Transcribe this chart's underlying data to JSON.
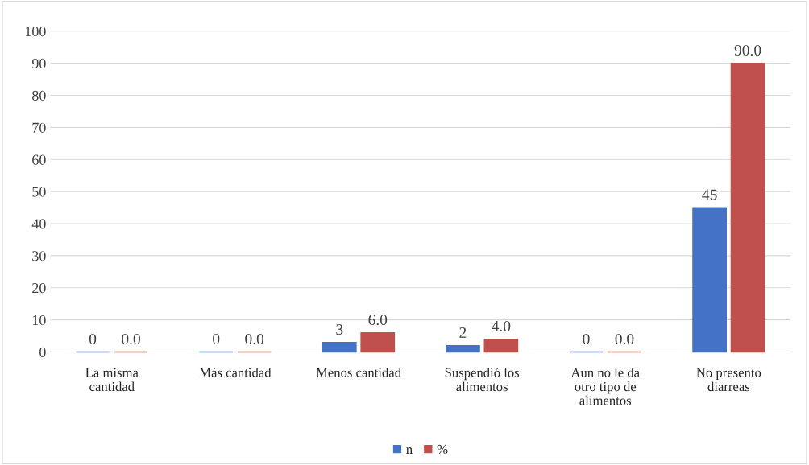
{
  "chart_data": {
    "type": "bar",
    "categories": [
      "La misma\ncantidad",
      "Más cantidad",
      "Menos cantidad",
      "Suspendió los\nalimentos",
      "Aun no le da\notro tipo de\nalimentos",
      "No presento\ndiarreas"
    ],
    "series": [
      {
        "name": "n",
        "color": "#4472c4",
        "values": [
          0,
          0,
          3,
          2,
          0,
          45
        ],
        "value_labels": [
          "0",
          "0",
          "3",
          "2",
          "0",
          "45"
        ]
      },
      {
        "name": "%",
        "color": "#c0504d",
        "values": [
          0,
          0,
          6,
          4,
          0,
          90
        ],
        "value_labels": [
          "0.0",
          "0.0",
          "6.0",
          "4.0",
          "0.0",
          "90.0"
        ]
      }
    ],
    "ylim": [
      0,
      100
    ],
    "yticks": [
      0,
      10,
      20,
      30,
      40,
      50,
      60,
      70,
      80,
      90,
      100
    ],
    "grid": "y",
    "legend": "bottom"
  }
}
